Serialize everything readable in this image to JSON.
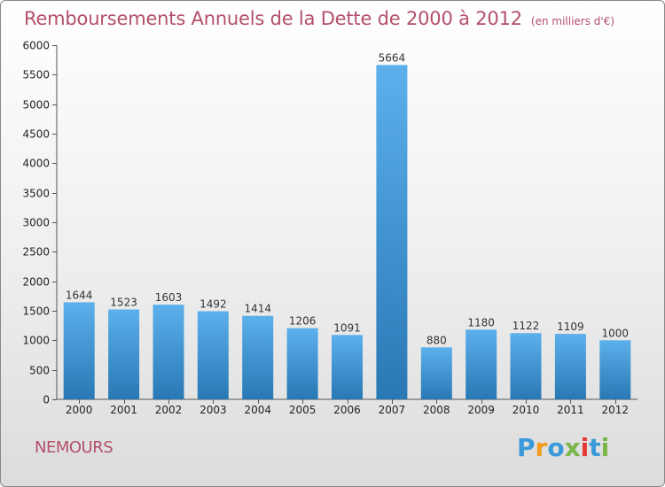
{
  "title": "Remboursements Annuels de la Dette de 2000 à 2012",
  "unit": "(en milliers d'€)",
  "commune": "NEMOURS",
  "logo": {
    "letters": [
      "P",
      "r",
      "o",
      "x",
      "i",
      "t",
      "i"
    ],
    "colors": [
      "#3a9ad9",
      "#f29b1d",
      "#3a9ad9",
      "#7ab648",
      "#e53935",
      "#3a9ad9",
      "#7ab648"
    ]
  },
  "colors": {
    "bar_light": "#5cb0ec",
    "bar_dark": "#2878b4",
    "text_accent": "#b3506a"
  },
  "chart_data": {
    "type": "bar",
    "categories": [
      "2000",
      "2001",
      "2002",
      "2003",
      "2004",
      "2005",
      "2006",
      "2007",
      "2008",
      "2009",
      "2010",
      "2011",
      "2012"
    ],
    "values": [
      1644,
      1523,
      1603,
      1492,
      1414,
      1206,
      1091,
      5664,
      880,
      1180,
      1122,
      1109,
      1000
    ],
    "ylim": [
      0,
      6000
    ],
    "yticks": [
      0,
      500,
      1000,
      1500,
      2000,
      2500,
      3000,
      3500,
      4000,
      4500,
      5000,
      5500,
      6000
    ],
    "grid": false,
    "data_labels": true
  }
}
